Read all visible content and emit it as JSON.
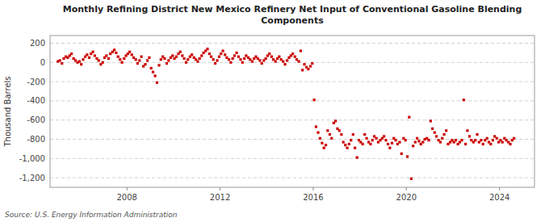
{
  "chart_data": {
    "type": "scatter",
    "title": "Monthly Refining District New Mexico Refinery Net Input of Conventional Gasoline Blending\nComponents",
    "y_label": "Thousand Barrels",
    "annotations": [
      "Source: U.S. Energy Information Administration"
    ],
    "color": "#cc0000",
    "marker": "square",
    "grid": true,
    "xlim": [
      2004.7,
      2025.5
    ],
    "xticks": [
      2008,
      2012,
      2016,
      2020,
      2024
    ],
    "ylim": [
      -1300,
      280
    ],
    "yticks": [
      {
        "value": -1200,
        "label": "-1,200"
      },
      {
        "value": -1000,
        "label": "-1,000"
      },
      -800,
      -600,
      -400,
      -200,
      0,
      200
    ],
    "x": [
      2005.04,
      2005.12,
      2005.21,
      2005.29,
      2005.38,
      2005.46,
      2005.54,
      2005.62,
      2005.71,
      2005.79,
      2005.88,
      2005.96,
      2006.04,
      2006.12,
      2006.21,
      2006.29,
      2006.38,
      2006.46,
      2006.54,
      2006.62,
      2006.71,
      2006.79,
      2006.88,
      2006.96,
      2007.04,
      2007.12,
      2007.21,
      2007.29,
      2007.38,
      2007.46,
      2007.54,
      2007.62,
      2007.71,
      2007.79,
      2007.88,
      2007.96,
      2008.04,
      2008.12,
      2008.21,
      2008.29,
      2008.38,
      2008.46,
      2008.54,
      2008.62,
      2008.71,
      2008.79,
      2008.88,
      2008.96,
      2009.04,
      2009.12,
      2009.21,
      2009.29,
      2009.38,
      2009.46,
      2009.54,
      2009.62,
      2009.71,
      2009.79,
      2009.88,
      2009.96,
      2010.04,
      2010.12,
      2010.21,
      2010.29,
      2010.38,
      2010.46,
      2010.54,
      2010.62,
      2010.71,
      2010.79,
      2010.88,
      2010.96,
      2011.04,
      2011.12,
      2011.21,
      2011.29,
      2011.38,
      2011.46,
      2011.54,
      2011.62,
      2011.71,
      2011.79,
      2011.88,
      2011.96,
      2012.04,
      2012.12,
      2012.21,
      2012.29,
      2012.38,
      2012.46,
      2012.54,
      2012.62,
      2012.71,
      2012.79,
      2012.88,
      2012.96,
      2013.04,
      2013.12,
      2013.21,
      2013.29,
      2013.38,
      2013.46,
      2013.54,
      2013.62,
      2013.71,
      2013.79,
      2013.88,
      2013.96,
      2014.04,
      2014.12,
      2014.21,
      2014.29,
      2014.38,
      2014.46,
      2014.54,
      2014.62,
      2014.71,
      2014.79,
      2014.88,
      2014.96,
      2015.04,
      2015.12,
      2015.21,
      2015.29,
      2015.38,
      2015.46,
      2015.54,
      2015.62,
      2015.71,
      2015.79,
      2015.88,
      2015.96,
      2016.04,
      2016.12,
      2016.21,
      2016.29,
      2016.38,
      2016.46,
      2016.54,
      2016.62,
      2016.71,
      2016.79,
      2016.88,
      2016.96,
      2017.04,
      2017.12,
      2017.21,
      2017.29,
      2017.38,
      2017.46,
      2017.54,
      2017.62,
      2017.71,
      2017.79,
      2017.88,
      2017.96,
      2018.04,
      2018.12,
      2018.21,
      2018.29,
      2018.38,
      2018.46,
      2018.54,
      2018.62,
      2018.71,
      2018.79,
      2018.88,
      2018.96,
      2019.04,
      2019.12,
      2019.21,
      2019.29,
      2019.38,
      2019.46,
      2019.54,
      2019.62,
      2019.71,
      2019.79,
      2019.88,
      2019.96,
      2020.04,
      2020.12,
      2020.21,
      2020.29,
      2020.38,
      2020.46,
      2020.54,
      2020.62,
      2020.71,
      2020.79,
      2020.88,
      2020.96,
      2021.04,
      2021.12,
      2021.21,
      2021.29,
      2021.38,
      2021.46,
      2021.54,
      2021.62,
      2021.71,
      2021.79,
      2021.88,
      2021.96,
      2022.04,
      2022.12,
      2022.21,
      2022.29,
      2022.38,
      2022.46,
      2022.54,
      2022.62,
      2022.71,
      2022.79,
      2022.88,
      2022.96,
      2023.04,
      2023.12,
      2023.21,
      2023.29,
      2023.38,
      2023.46,
      2023.54,
      2023.62,
      2023.71,
      2023.79,
      2023.88,
      2023.96,
      2024.04,
      2024.12,
      2024.21,
      2024.29,
      2024.38,
      2024.46,
      2024.54,
      2024.62
    ],
    "values": [
      10,
      20,
      -10,
      40,
      60,
      50,
      70,
      90,
      40,
      20,
      0,
      10,
      -20,
      30,
      60,
      80,
      50,
      90,
      110,
      70,
      40,
      20,
      -20,
      0,
      50,
      70,
      40,
      90,
      110,
      130,
      100,
      60,
      30,
      0,
      40,
      70,
      90,
      110,
      80,
      50,
      30,
      -10,
      20,
      60,
      -40,
      -20,
      20,
      50,
      -60,
      -100,
      -140,
      -210,
      -30,
      30,
      60,
      40,
      -10,
      20,
      50,
      70,
      40,
      60,
      90,
      110,
      70,
      40,
      0,
      30,
      60,
      80,
      50,
      30,
      10,
      40,
      70,
      100,
      120,
      140,
      90,
      60,
      30,
      -10,
      20,
      60,
      90,
      120,
      80,
      50,
      30,
      0,
      40,
      70,
      100,
      60,
      30,
      0,
      40,
      70,
      50,
      30,
      10,
      40,
      60,
      40,
      20,
      -10,
      20,
      40,
      70,
      90,
      60,
      30,
      10,
      40,
      60,
      30,
      10,
      -20,
      20,
      50,
      70,
      90,
      60,
      30,
      10,
      120,
      -80,
      -20,
      -50,
      -70,
      -40,
      -10,
      -390,
      -670,
      -730,
      -790,
      -840,
      -890,
      -860,
      -710,
      -750,
      -790,
      -630,
      -610,
      -690,
      -710,
      -750,
      -830,
      -860,
      -890,
      -850,
      -810,
      -750,
      -890,
      -990,
      -810,
      -830,
      -850,
      -750,
      -790,
      -830,
      -850,
      -810,
      -770,
      -790,
      -830,
      -810,
      -790,
      -770,
      -810,
      -850,
      -890,
      -840,
      -790,
      -810,
      -850,
      -830,
      -950,
      -790,
      -810,
      -980,
      -570,
      -1210,
      -870,
      -830,
      -790,
      -820,
      -850,
      -830,
      -800,
      -790,
      -810,
      -610,
      -690,
      -730,
      -770,
      -810,
      -830,
      -790,
      -750,
      -710,
      -850,
      -830,
      -810,
      -830,
      -810,
      -850,
      -830,
      -810,
      -390,
      -850,
      -710,
      -770,
      -810,
      -830,
      -810,
      -750,
      -830,
      -810,
      -850,
      -810,
      -790,
      -830,
      -850,
      -810,
      -770,
      -790,
      -830,
      -810,
      -830,
      -790,
      -810,
      -830,
      -850,
      -810,
      -790
    ]
  }
}
